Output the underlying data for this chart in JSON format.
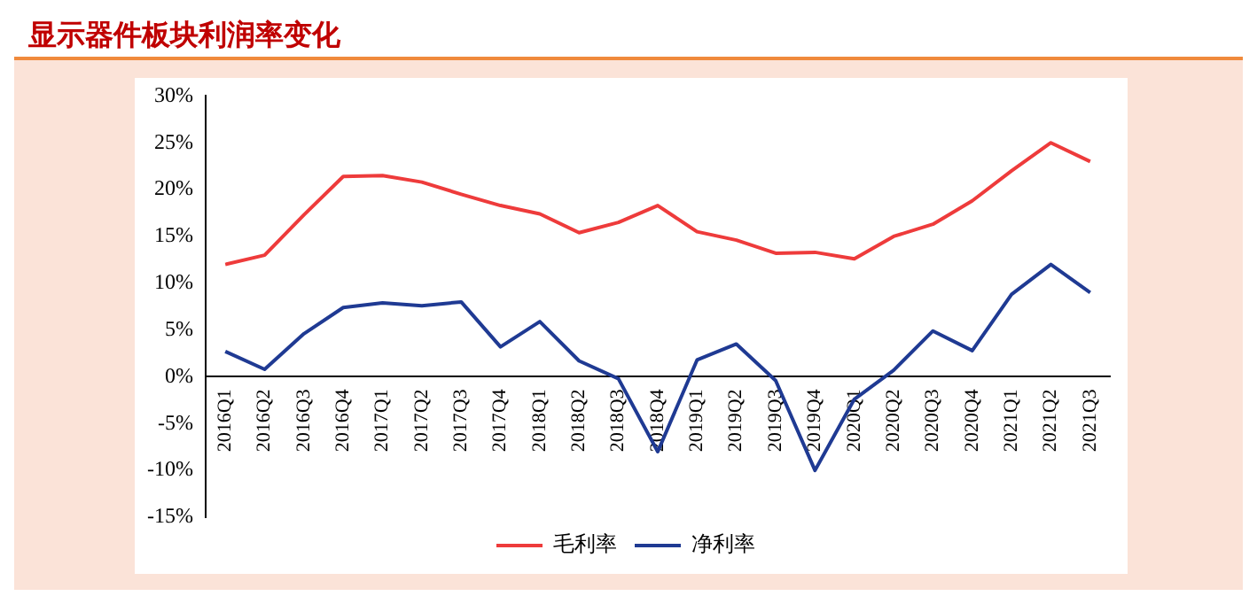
{
  "chart_data": {
    "type": "line",
    "title": "显示器件板块利润率变化",
    "categories": [
      "2016Q1",
      "2016Q2",
      "2016Q3",
      "2016Q4",
      "2017Q1",
      "2017Q2",
      "2017Q3",
      "2017Q4",
      "2018Q1",
      "2018Q2",
      "2018Q3",
      "2018Q4",
      "2019Q1",
      "2019Q2",
      "2019Q3",
      "2019Q4",
      "2020Q1",
      "2020Q2",
      "2020Q3",
      "2020Q4",
      "2021Q1",
      "2021Q2",
      "2021Q3"
    ],
    "series": [
      {
        "name": "毛利率",
        "color": "#ee3b3b",
        "values": [
          12,
          13,
          17.3,
          21.4,
          21.5,
          20.8,
          19.5,
          18.3,
          17.4,
          15.4,
          16.5,
          18.3,
          15.5,
          14.6,
          13.2,
          13.3,
          12.6,
          15,
          16.3,
          18.8,
          22,
          25,
          23
        ]
      },
      {
        "name": "净利率",
        "color": "#1f3a93",
        "values": [
          2.7,
          0.8,
          4.6,
          7.4,
          7.9,
          7.6,
          8,
          3.2,
          5.9,
          1.7,
          -0.2,
          -8,
          1.8,
          3.5,
          -0.4,
          -10,
          -2.4,
          0.7,
          4.9,
          2.8,
          8.8,
          12,
          9
        ]
      }
    ],
    "ylim": [
      -15,
      30
    ],
    "yticks": [
      {
        "value": -15,
        "label": "-15%"
      },
      {
        "value": -10,
        "label": "-10%"
      },
      {
        "value": -5,
        "label": "-5%"
      },
      {
        "value": 0,
        "label": "0%"
      },
      {
        "value": 5,
        "label": "5%"
      },
      {
        "value": 10,
        "label": "10%"
      },
      {
        "value": 15,
        "label": "15%"
      },
      {
        "value": 20,
        "label": "20%"
      },
      {
        "value": 25,
        "label": "25%"
      },
      {
        "value": 30,
        "label": "30%"
      }
    ],
    "grid": false,
    "legend": "bottom",
    "marker": "none",
    "line_style": "solid"
  }
}
